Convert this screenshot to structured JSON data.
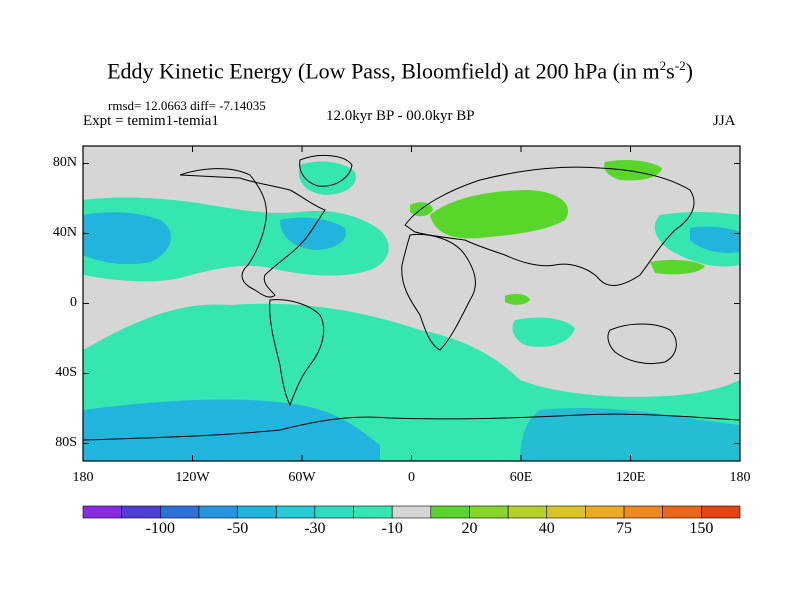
{
  "header": {
    "title_main": "Eddy Kinetic Energy (Low Pass, Bloomfield) at 200 hPa (in m",
    "title_sup1": "2",
    "title_s": "s",
    "title_sup2": "-2",
    "title_close": ")",
    "stats": "rmsd= 12.0663 diff= -7.14035",
    "expt": "Expt = temim1-temia1",
    "period": "12.0kyr BP - 00.0kyr BP",
    "season": "JJA"
  },
  "axes": {
    "y_ticks": [
      "80N",
      "40N",
      "0",
      "40S",
      "80S"
    ],
    "y_values": [
      80,
      40,
      0,
      -40,
      -80
    ],
    "x_ticks": [
      "180",
      "120W",
      "60W",
      "0",
      "60E",
      "120E",
      "180"
    ],
    "x_values": [
      -180,
      -120,
      -60,
      0,
      60,
      120,
      180
    ]
  },
  "colorbar": {
    "labels": [
      "-100",
      "-50",
      "-30",
      "-10",
      "20",
      "40",
      "75",
      "150"
    ],
    "colors": [
      "#8a2be2",
      "#4b3fd8",
      "#2f6fd8",
      "#2596dd",
      "#21b4dd",
      "#26cbd6",
      "#2fdcc2",
      "#35e6b0",
      "#d6d6d6",
      "#58d62c",
      "#88d62a",
      "#b5d128",
      "#d8c426",
      "#e9a922",
      "#ee8a1e",
      "#ee661a",
      "#e44316"
    ]
  },
  "colors": {
    "background_land_ocean_neutral": "#d6d6d6",
    "negative_light": "#35e6b0",
    "negative_medium": "#21b4dd",
    "positive_light": "#58d62c"
  }
}
